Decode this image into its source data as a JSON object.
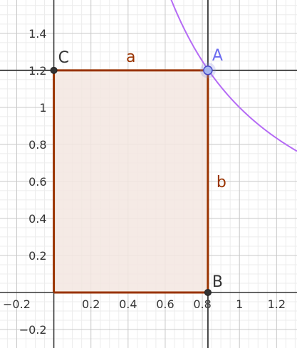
{
  "graph": {
    "x_ticks": [
      {
        "label": "−0.2",
        "v": -0.2
      },
      {
        "label": "0.2",
        "v": 0.2
      },
      {
        "label": "0.4",
        "v": 0.4
      },
      {
        "label": "0.6",
        "v": 0.6
      },
      {
        "label": "0.8",
        "v": 0.8
      },
      {
        "label": "1",
        "v": 1.0
      },
      {
        "label": "1.2",
        "v": 1.2
      }
    ],
    "y_ticks": [
      {
        "label": "−0.2",
        "v": -0.2
      },
      {
        "label": "0.2",
        "v": 0.2
      },
      {
        "label": "0.4",
        "v": 0.4
      },
      {
        "label": "0.6",
        "v": 0.6
      },
      {
        "label": "0.8",
        "v": 0.8
      },
      {
        "label": "1",
        "v": 1.0
      },
      {
        "label": "1.2",
        "v": 1.2
      },
      {
        "label": "1.4",
        "v": 1.4
      }
    ],
    "x_range": [
      -0.29,
      1.31
    ],
    "y_range": [
      -0.3,
      1.58
    ],
    "points": {
      "A": {
        "label": "A",
        "x": 0.83,
        "y": 1.2,
        "color": "#6c6cf0"
      },
      "B": {
        "label": "B",
        "x": 0.83,
        "y": 0.0,
        "color": "#333333"
      },
      "C": {
        "label": "C",
        "x": 0.0,
        "y": 1.2,
        "color": "#333333"
      }
    },
    "segments": {
      "a": {
        "label": "a",
        "color": "#993300"
      },
      "b": {
        "label": "b",
        "color": "#993300"
      }
    },
    "curve": {
      "k": 1.0,
      "color": "#b56bf5"
    },
    "rect_fill": "#f3e6e0",
    "rect_stroke": "#993300"
  }
}
